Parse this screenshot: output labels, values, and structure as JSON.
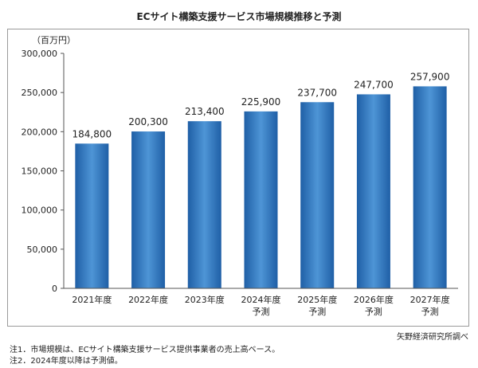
{
  "chart_data": {
    "type": "bar",
    "title": "ECサイト構築支援サービス市場規模推移と予測",
    "unit_label": "（百万円）",
    "categories": [
      [
        "2021年度"
      ],
      [
        "2022年度"
      ],
      [
        "2023年度"
      ],
      [
        "2024年度",
        "予測"
      ],
      [
        "2025年度",
        "予測"
      ],
      [
        "2026年度",
        "予測"
      ],
      [
        "2027年度",
        "予測"
      ]
    ],
    "values": [
      184800,
      200300,
      213400,
      225900,
      237700,
      247700,
      257900
    ],
    "value_labels": [
      "184,800",
      "200,300",
      "213,400",
      "225,900",
      "237,700",
      "247,700",
      "257,900"
    ],
    "yticks": [
      "0",
      "50,000",
      "100,000",
      "150,000",
      "200,000",
      "250,000",
      "300,000"
    ],
    "ylim": [
      0,
      300000
    ],
    "grid": false,
    "bar_color_top": "#1f5fa6",
    "bar_color_mid": "#4e95d6",
    "bar_color_bottom": "#1f5fa6"
  },
  "source": "矢野経済研究所調べ",
  "notes": [
    "注1．市場規模は、ECサイト構築支援サービス提供事業者の売上高ベース。",
    "注2．2024年度以降は予測値。"
  ]
}
